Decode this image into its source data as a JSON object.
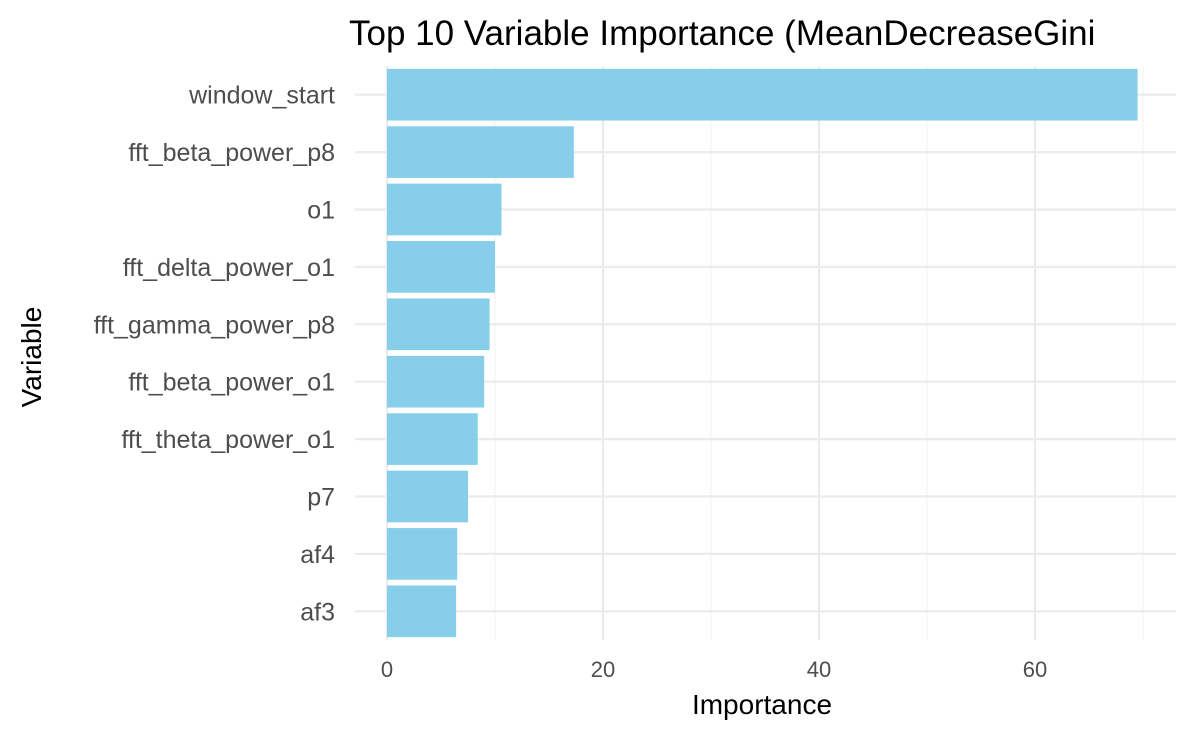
{
  "chart_data": {
    "type": "bar",
    "orientation": "horizontal",
    "title": "Top 10 Variable Importance (MeanDecreaseGini",
    "xlabel": "Importance",
    "ylabel": "Variable",
    "categories": [
      "window_start",
      "fft_beta_power_p8",
      "o1",
      "fft_delta_power_o1",
      "fft_gamma_power_p8",
      "fft_beta_power_o1",
      "fft_theta_power_o1",
      "p7",
      "af4",
      "af3"
    ],
    "values": [
      69.5,
      17.3,
      10.6,
      10.0,
      9.5,
      9.0,
      8.4,
      7.5,
      6.5,
      6.4
    ],
    "xlim": [
      0,
      72
    ],
    "xticks": [
      0,
      20,
      40,
      60
    ],
    "grid": true,
    "legend": "none",
    "bar_color": "#87CEEB"
  }
}
